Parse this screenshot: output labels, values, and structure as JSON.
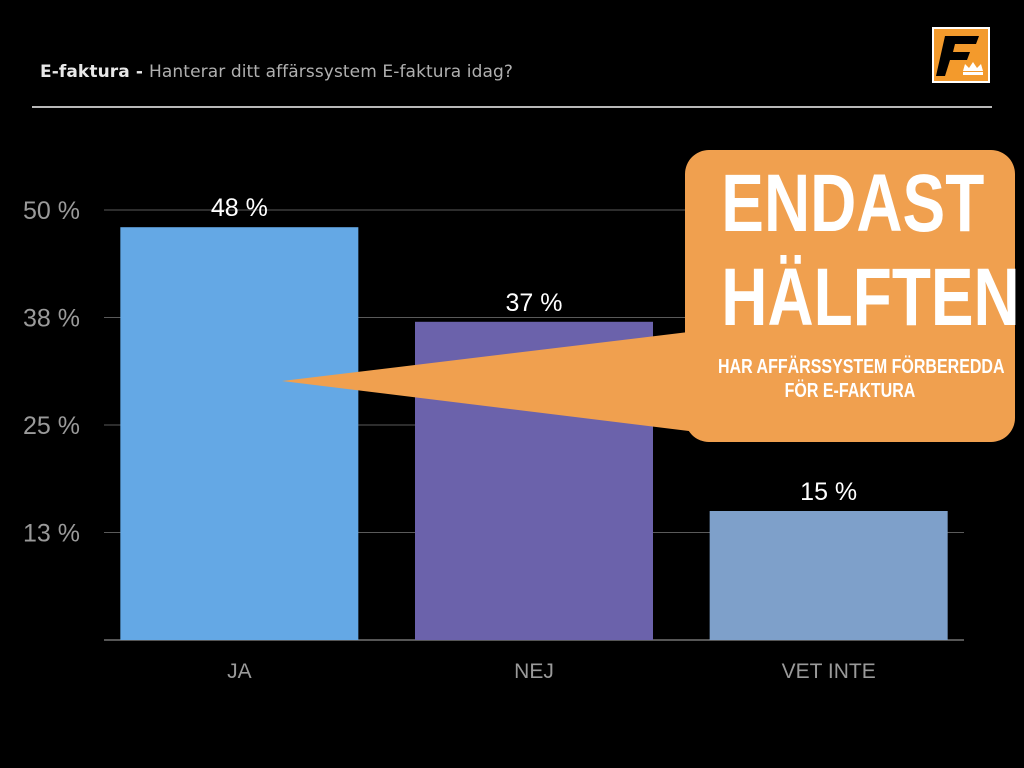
{
  "header": {
    "title_strong": "E-faktura - ",
    "title_rest": "Hanterar ditt affärssystem E-faktura idag?"
  },
  "logo": {
    "letter": "F",
    "icon": "crown-icon",
    "colors": {
      "background": "#f39a2c",
      "letter": "#000000",
      "border": "#ffffff"
    }
  },
  "callout": {
    "line1": "ENDAST",
    "line2": "HÄLFTEN",
    "sub1": "HAR AFFÄRSSYSTEM FÖRBEREDDA",
    "sub2": "FÖR E-FAKTURA",
    "color": "#f0a04f"
  },
  "chart_data": {
    "type": "bar",
    "categories": [
      "JA",
      "NEJ",
      "VET INTE"
    ],
    "values": [
      48,
      37,
      15
    ],
    "value_labels": [
      "48 %",
      "37 %",
      "15 %"
    ],
    "colors": [
      "#64a8e5",
      "#6b62ab",
      "#7ea0ca"
    ],
    "y_ticks": [
      {
        "value": 12.5,
        "label": "13 %"
      },
      {
        "value": 25,
        "label": "25 %"
      },
      {
        "value": 37.5,
        "label": "38 %"
      },
      {
        "value": 50,
        "label": "50 %"
      }
    ],
    "ylim": [
      0,
      50
    ],
    "grid": true,
    "title": "",
    "xlabel": "",
    "ylabel": ""
  }
}
